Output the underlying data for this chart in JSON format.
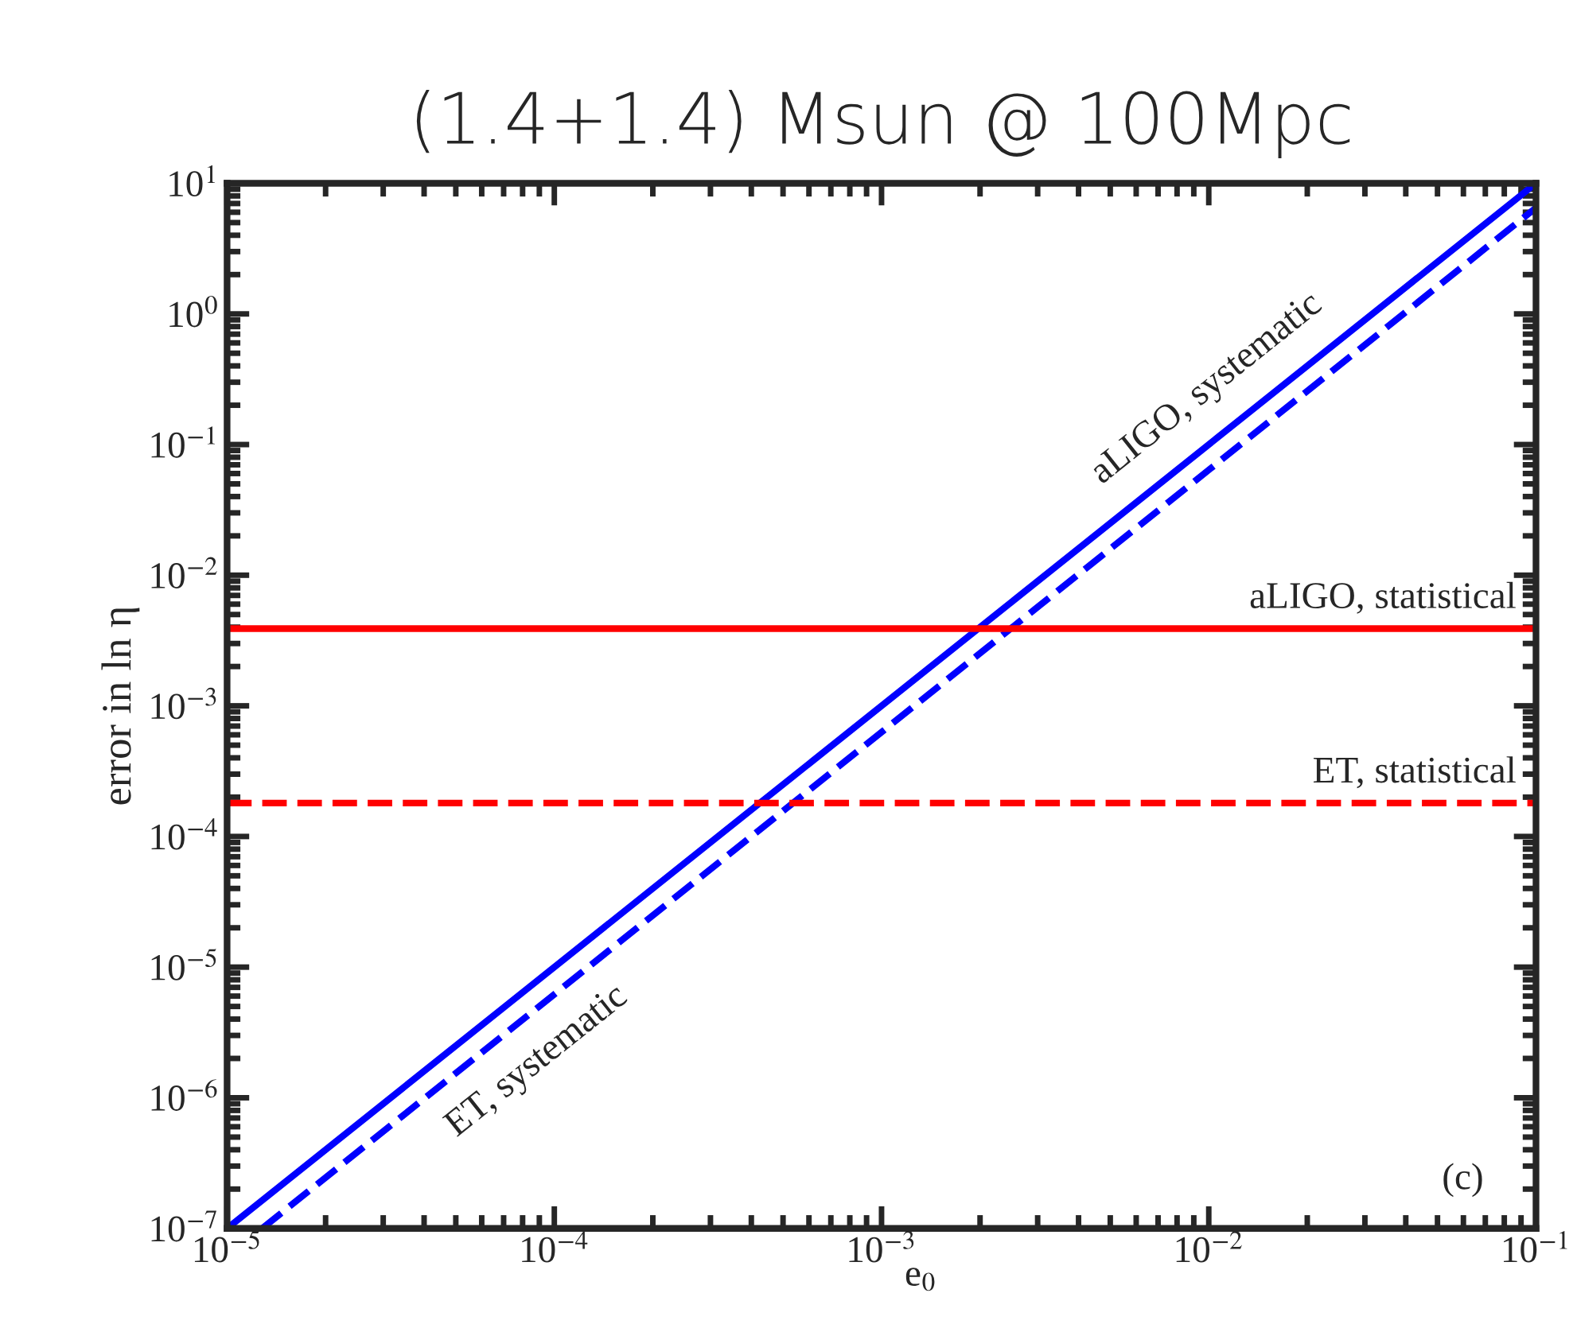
{
  "chart_data": {
    "type": "line",
    "title": "(1.4+1.4) Msun @ 100Mpc",
    "xlabel": "e$_{0}$",
    "ylabel": "error in ln η",
    "log": "xy",
    "series": [
      {
        "color": "#0000ff",
        "line_style": "solid",
        "x": [
          1e-05,
          0.1
        ],
        "values": [
          1e-07,
          10
        ]
      },
      {
        "color": "#0000ff",
        "line_style": "dashed",
        "x": [
          1.28e-05,
          0.1
        ],
        "values": [
          1e-07,
          6.5
        ]
      }
    ],
    "ref_lines": [
      {
        "axis": "y",
        "value": 0.0039,
        "label": "aLIGO, statistical",
        "color": "#ff0000",
        "line_style": "solid"
      },
      {
        "axis": "y",
        "value": 0.00018,
        "label": "ET, statistical",
        "color": "#ff0000",
        "line_style": "dashed"
      }
    ],
    "annotations": [
      {
        "text": "aLIGO, systematic",
        "x": 0.012,
        "y": 0.144
      },
      {
        "text": "ET, systematic",
        "x": 7.3e-05,
        "y": 3.46e-06
      },
      "(c)"
    ],
    "xlim": [
      1e-05,
      0.1
    ],
    "ylim": [
      1e-07,
      10
    ],
    "xticks": [
      {
        "value": 1e-05,
        "label": "10$^{−5}$"
      },
      {
        "value": 0.0001,
        "label": "10$^{−4}$"
      },
      {
        "value": 0.001,
        "label": "10$^{−3}$"
      },
      {
        "value": 0.01,
        "label": "10$^{−2}$"
      },
      {
        "value": 0.1,
        "label": "10$^{−1}$"
      }
    ],
    "yticks": [
      {
        "value": 1e-07,
        "label": "10$^{−7}$"
      },
      {
        "value": 1e-06,
        "label": "10$^{−6}$"
      },
      {
        "value": 1e-05,
        "label": "10$^{−5}$"
      },
      {
        "value": 0.0001,
        "label": "10$^{−4}$"
      },
      {
        "value": 0.001,
        "label": "10$^{−3}$"
      },
      {
        "value": 0.01,
        "label": "10$^{−2}$"
      },
      {
        "value": 0.1,
        "label": "10$^{−1}$"
      },
      {
        "value": 1,
        "label": "10$^{0}$"
      },
      {
        "value": 10,
        "label": "10$^{1}$"
      }
    ],
    "grid": false
  }
}
